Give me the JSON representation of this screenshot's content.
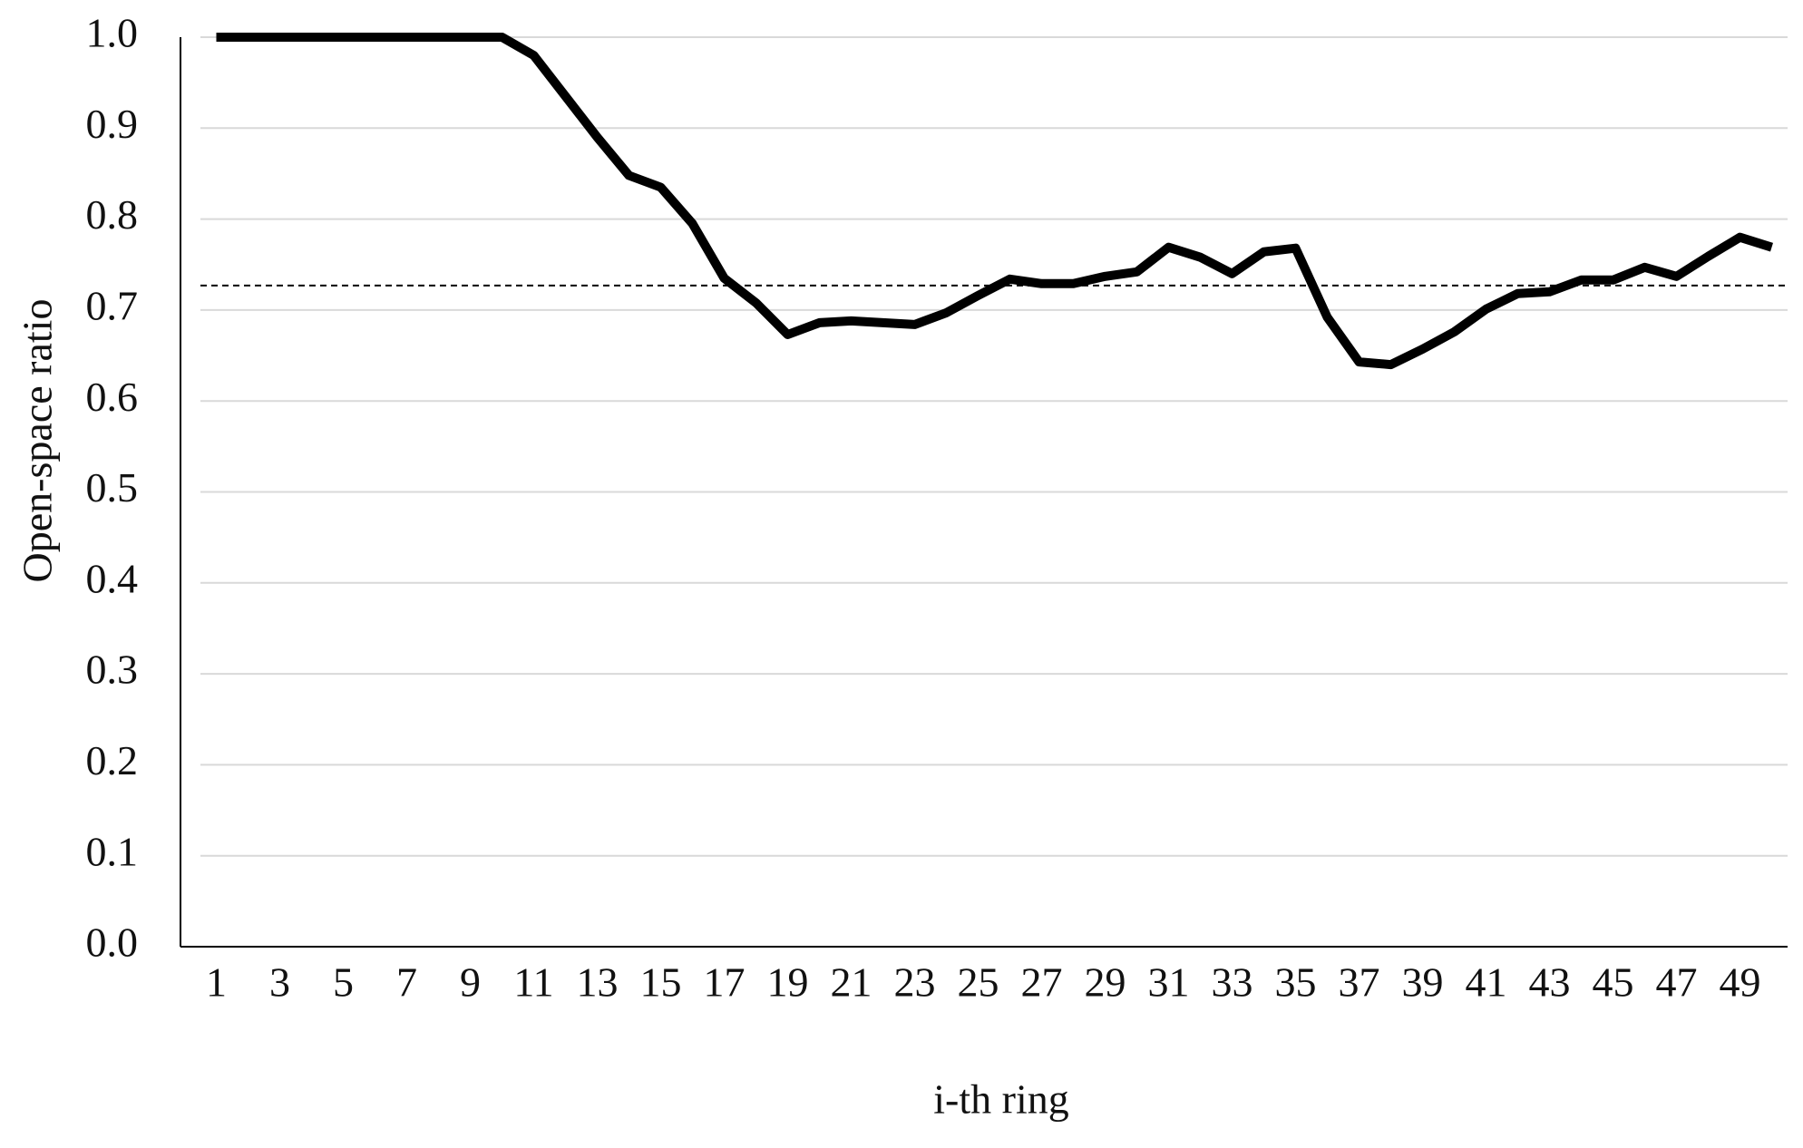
{
  "chart_data": {
    "type": "line",
    "xlabel": "i-th ring",
    "ylabel": "Open-space ratio",
    "categories": [
      "1",
      null,
      "3",
      null,
      "5",
      null,
      "7",
      null,
      "9",
      null,
      "11",
      null,
      "13",
      null,
      "15",
      null,
      "17",
      null,
      "19",
      null,
      "21",
      null,
      "23",
      null,
      "25",
      null,
      "27",
      null,
      "29",
      null,
      "31",
      null,
      "33",
      null,
      "35",
      null,
      "37",
      null,
      "39",
      null,
      "41",
      null,
      "43",
      null,
      "45",
      null,
      "47",
      null,
      "49",
      null
    ],
    "series": [
      {
        "color": "#000000",
        "values": [
          1.0,
          1.0,
          1.0,
          1.0,
          1.0,
          1.0,
          1.0,
          1.0,
          1.0,
          1.0,
          0.98,
          0.935,
          0.89,
          0.848,
          0.835,
          0.795,
          0.735,
          0.708,
          0.673,
          0.686,
          0.688,
          0.686,
          0.684,
          0.697,
          0.716,
          0.734,
          0.729,
          0.729,
          0.737,
          0.742,
          0.769,
          0.758,
          0.74,
          0.764,
          0.768,
          0.692,
          0.643,
          0.64,
          0.657,
          0.676,
          0.701,
          0.718,
          0.72,
          0.733,
          0.733,
          0.747,
          0.737,
          0.759,
          0.78,
          0.769
        ]
      }
    ],
    "reference_line": 0.727,
    "ylim": [
      0,
      1
    ],
    "yticks": [
      {
        "value": 0,
        "label": "0.0"
      },
      0.1,
      0.2,
      0.3,
      0.4,
      0.5,
      0.6,
      0.7,
      0.8,
      0.9,
      {
        "value": 1,
        "label": "1.0"
      }
    ],
    "grid": true
  }
}
